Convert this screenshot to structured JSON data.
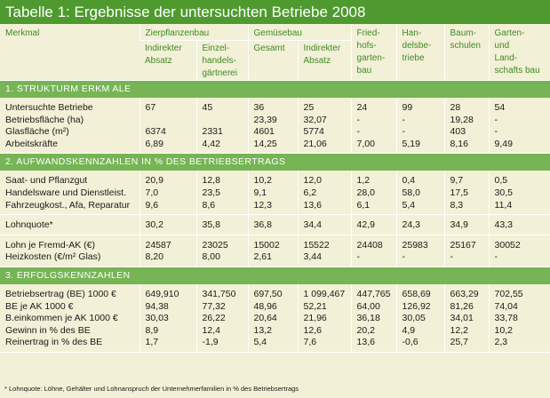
{
  "title": "Tabelle 1: Ergebnisse der untersuchten Betriebe 2008",
  "header": {
    "merkmal": "Merkmal",
    "zierpflanzenbau": "Zierpflanzenbau",
    "gemuesebau": "Gemüsebau",
    "friedhof": [
      "Fried-",
      "hofs-",
      "garten-",
      "bau"
    ],
    "handel": [
      "Han-",
      "delsbe-",
      "triebe"
    ],
    "baum": [
      "Baum-",
      "schulen"
    ],
    "garten": [
      "Garten-",
      "und",
      "Land-",
      "schafts bau"
    ],
    "zier_ind": [
      "Indirekter",
      "Absatz"
    ],
    "zier_einzel": [
      "Einzel-",
      "handels-",
      "gärtnerei"
    ],
    "gem_gesamt": "Gesamt",
    "gem_ind": [
      "Indirekter",
      "Absatz"
    ]
  },
  "sections": [
    {
      "label": "1. STRUKTURM ERKM ALE",
      "groups": [
        [
          [
            "Untersuchte Betriebe",
            "67",
            "45",
            "36",
            "25",
            "24",
            "99",
            "28",
            "54"
          ],
          [
            "Betriebsfläche (ha)",
            "",
            "",
            "23,39",
            "32,07",
            "-",
            "-",
            "19,28",
            "-"
          ],
          [
            "Glasfläche (m²)",
            "6374",
            "2331",
            "4601",
            "5774",
            "-",
            "-",
            "403",
            "-"
          ],
          [
            "Arbeitskräfte",
            "6,89",
            "4,42",
            "14,25",
            "21,06",
            "7,00",
            "5,19",
            "8,16",
            "9,49"
          ]
        ]
      ]
    },
    {
      "label": "2. AUFWANDSKENNZAHLEN IN % DES BETRIEBSERTRAGS",
      "groups": [
        [
          [
            "Saat- und Pflanzgut",
            "20,9",
            "12,8",
            "10,2",
            "12,0",
            "1,2",
            "0,4",
            "9,7",
            "0,5"
          ],
          [
            "Handelsware und Dienstleist.",
            "7,0",
            "23,5",
            "9,1",
            "6,2",
            "28,0",
            "58,0",
            "17,5",
            "30,5"
          ],
          [
            "Fahrzeugkost., Afa, Reparatur",
            "9,6",
            "8,6",
            "12,3",
            "13,6",
            "6,1",
            "5,4",
            "8,3",
            "11,4"
          ]
        ],
        [
          [
            "Lohnquote*",
            "30,2",
            "35,8",
            "36,8",
            "34,4",
            "42,9",
            "24,3",
            "34,9",
            "43,3"
          ]
        ],
        [
          [
            "Lohn je Fremd-AK (€)",
            "24587",
            "23025",
            "15002",
            "15522",
            "24408",
            "25983",
            "25167",
            "30052"
          ],
          [
            "Heizkosten (€/m²  Glas)",
            "8,20",
            "8,00",
            "2,61",
            "3,44",
            "-",
            "-",
            "-",
            "-"
          ]
        ]
      ]
    },
    {
      "label": "3. ERFOLGSKENNZAHLEN",
      "groups": [
        [
          [
            "Betriebsertrag (BE) 1000 €",
            "649,910",
            "341,750",
            "697,50",
            "1 099,467",
            "447,765",
            "658,69",
            "663,29",
            "702,55"
          ],
          [
            "BE je AK 1000 €",
            "94,38",
            "77,32",
            "48,96",
            "52,21",
            "64,00",
            "126,92",
            "81,26",
            "74,04"
          ],
          [
            "B.einkommen je AK 1000 €",
            "30,03",
            "26,22",
            "20,64",
            "21,96",
            "36,18",
            "30,05",
            "34,01",
            "33,78"
          ],
          [
            "Gewinn in % des BE",
            "8,9",
            "12,4",
            "13,2",
            "12,6",
            "20,2",
            "4,9",
            "12,2",
            "10,2"
          ],
          [
            "Reinertrag in % des BE",
            "1,7",
            "-1,9",
            "5,4",
            "7,6",
            "13,6",
            "-0,6",
            "25,7",
            "2,3"
          ]
        ]
      ]
    }
  ],
  "footnote": "* Lohnquote: Löhne, Gehälter und Lohnanspruch der Unternehmerfamilien in % des Betriebsertrags"
}
